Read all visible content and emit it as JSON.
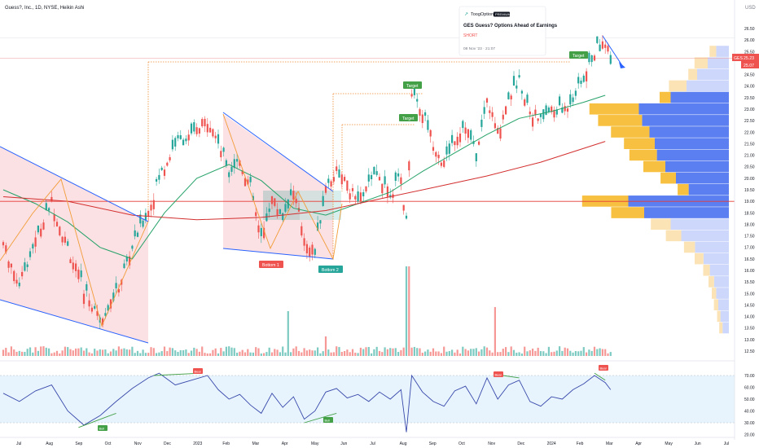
{
  "header": {
    "symbol_line": "Guess?, Inc., 1D, NYSE, Heikin Ashi",
    "currency": "USD"
  },
  "news_card": {
    "brand": "ToogOptions",
    "badge": "PREMIUM",
    "title": "GES Guess? Options Ahead of Earnings",
    "signal": "SHORT",
    "date": "08 Nov '23 · 21:07"
  },
  "price_labels": {
    "ticker": "GES",
    "last": "25.23",
    "prev": "25.07"
  },
  "annotations": {
    "bottom1": "Bottom 1",
    "bottom2": "Bottom 2",
    "targets": [
      "Target",
      "Target",
      "Target"
    ],
    "rsi_markers": [
      "Bull",
      "Bear",
      "Bull",
      "Bear",
      "Bear"
    ]
  },
  "colors": {
    "up": "#26a69a",
    "down": "#ef5350",
    "sma_green": "#26a269",
    "sma_red": "#d32f2f",
    "trendline": "#2962ff",
    "vp_orange": "#f7c040",
    "vp_blue": "#5b7ff0",
    "rsi_line": "#3949ab",
    "target_badge": "#43a047",
    "bottom1_badge": "#ef5350",
    "bottom2_badge": "#26a69a"
  },
  "chart_data": {
    "type": "candlestick",
    "price_axis": {
      "ticks": [
        "26.50",
        "26.00",
        "25.50",
        "25.00",
        "24.50",
        "24.00",
        "23.50",
        "23.00",
        "22.50",
        "22.00",
        "21.50",
        "21.00",
        "20.50",
        "20.00",
        "19.50",
        "19.00",
        "18.50",
        "18.00",
        "17.50",
        "17.00",
        "16.50",
        "16.00",
        "15.50",
        "15.00",
        "14.50",
        "14.00",
        "13.50",
        "13.00",
        "12.50"
      ]
    },
    "time_axis": {
      "ticks": [
        "Jul",
        "Aug",
        "Sep",
        "Oct",
        "Nov",
        "Dec",
        "2023",
        "Feb",
        "Mar",
        "Apr",
        "May",
        "Jun",
        "Jul",
        "Aug",
        "Sep",
        "Oct",
        "Nov",
        "Dec",
        "2024",
        "Feb",
        "Mar",
        "Apr",
        "May",
        "Jun",
        "Jul"
      ]
    },
    "rsi_axis": {
      "ticks": [
        "70.00",
        "60.00",
        "50.00",
        "40.00",
        "30.00",
        "20.00"
      ],
      "band": [
        30,
        70
      ]
    },
    "horizontal_level": 19.0,
    "price_path": [
      [
        0,
        17.2
      ],
      [
        6,
        15.4
      ],
      [
        12,
        17.3
      ],
      [
        18,
        19.0
      ],
      [
        24,
        17.0
      ],
      [
        30,
        15.2
      ],
      [
        36,
        13.9
      ],
      [
        42,
        15.0
      ],
      [
        48,
        17.0
      ],
      [
        54,
        18.6
      ],
      [
        58,
        20.0
      ],
      [
        64,
        21.5
      ],
      [
        70,
        21.8
      ],
      [
        76,
        22.6
      ],
      [
        80,
        21.6
      ],
      [
        84,
        20.3
      ],
      [
        88,
        20.8
      ],
      [
        92,
        19.6
      ],
      [
        96,
        17.3
      ],
      [
        100,
        19.2
      ],
      [
        104,
        18.3
      ],
      [
        108,
        19.5
      ],
      [
        112,
        17.5
      ],
      [
        116,
        16.8
      ],
      [
        120,
        19.6
      ],
      [
        124,
        20.4
      ],
      [
        128,
        19.7
      ],
      [
        132,
        19.0
      ],
      [
        136,
        19.7
      ],
      [
        140,
        20.2
      ],
      [
        144,
        19.4
      ],
      [
        148,
        20.0
      ],
      [
        150,
        18.1
      ],
      [
        152,
        23.8
      ],
      [
        156,
        22.9
      ],
      [
        160,
        21.6
      ],
      [
        164,
        20.6
      ],
      [
        168,
        21.8
      ],
      [
        172,
        22.4
      ],
      [
        176,
        20.9
      ],
      [
        180,
        23.4
      ],
      [
        184,
        22.0
      ],
      [
        188,
        23.6
      ],
      [
        192,
        24.2
      ],
      [
        196,
        23.0
      ],
      [
        200,
        22.5
      ],
      [
        204,
        23.0
      ],
      [
        208,
        22.9
      ],
      [
        212,
        23.5
      ],
      [
        216,
        24.3
      ],
      [
        220,
        25.5
      ],
      [
        224,
        26.0
      ],
      [
        226,
        25.2
      ]
    ],
    "sma_green": [
      [
        0,
        19.5
      ],
      [
        12,
        18.9
      ],
      [
        24,
        18.1
      ],
      [
        36,
        17.0
      ],
      [
        48,
        16.5
      ],
      [
        60,
        18.5
      ],
      [
        72,
        20.0
      ],
      [
        84,
        20.6
      ],
      [
        96,
        19.9
      ],
      [
        108,
        18.7
      ],
      [
        120,
        18.4
      ],
      [
        132,
        18.9
      ],
      [
        144,
        19.4
      ],
      [
        156,
        20.3
      ],
      [
        168,
        21.1
      ],
      [
        180,
        21.9
      ],
      [
        192,
        22.6
      ],
      [
        204,
        22.9
      ],
      [
        216,
        23.3
      ],
      [
        224,
        23.6
      ]
    ],
    "sma_red": [
      [
        0,
        19.2
      ],
      [
        24,
        19.0
      ],
      [
        48,
        18.4
      ],
      [
        72,
        18.2
      ],
      [
        96,
        18.3
      ],
      [
        120,
        18.6
      ],
      [
        140,
        19.1
      ],
      [
        160,
        19.6
      ],
      [
        180,
        20.1
      ],
      [
        200,
        20.7
      ],
      [
        224,
        21.6
      ]
    ],
    "rsi": [
      [
        0,
        55
      ],
      [
        6,
        48
      ],
      [
        12,
        57
      ],
      [
        18,
        62
      ],
      [
        24,
        40
      ],
      [
        30,
        28
      ],
      [
        36,
        36
      ],
      [
        42,
        48
      ],
      [
        48,
        59
      ],
      [
        54,
        68
      ],
      [
        58,
        72
      ],
      [
        64,
        62
      ],
      [
        70,
        66
      ],
      [
        76,
        70
      ],
      [
        80,
        58
      ],
      [
        84,
        50
      ],
      [
        88,
        54
      ],
      [
        92,
        45
      ],
      [
        96,
        38
      ],
      [
        100,
        55
      ],
      [
        104,
        43
      ],
      [
        108,
        52
      ],
      [
        112,
        33
      ],
      [
        116,
        40
      ],
      [
        120,
        56
      ],
      [
        124,
        59
      ],
      [
        128,
        51
      ],
      [
        132,
        54
      ],
      [
        136,
        48
      ],
      [
        140,
        56
      ],
      [
        144,
        50
      ],
      [
        148,
        58
      ],
      [
        150,
        22
      ],
      [
        152,
        70
      ],
      [
        156,
        56
      ],
      [
        160,
        48
      ],
      [
        164,
        44
      ],
      [
        168,
        57
      ],
      [
        172,
        61
      ],
      [
        176,
        46
      ],
      [
        180,
        68
      ],
      [
        184,
        50
      ],
      [
        188,
        62
      ],
      [
        192,
        66
      ],
      [
        196,
        48
      ],
      [
        200,
        44
      ],
      [
        204,
        52
      ],
      [
        208,
        50
      ],
      [
        212,
        58
      ],
      [
        216,
        63
      ],
      [
        220,
        70
      ],
      [
        224,
        64
      ],
      [
        226,
        58
      ]
    ],
    "volume_profile": [
      {
        "price": 25.5,
        "up": 6,
        "down": 12
      },
      {
        "price": 25.0,
        "up": 12,
        "down": 20
      },
      {
        "price": 24.5,
        "up": 8,
        "down": 30
      },
      {
        "price": 24.0,
        "up": 16,
        "down": 40
      },
      {
        "price": 23.5,
        "up": 10,
        "down": 55
      },
      {
        "price": 23.0,
        "up": 45,
        "down": 85
      },
      {
        "price": 22.5,
        "up": 40,
        "down": 82
      },
      {
        "price": 22.0,
        "up": 35,
        "down": 75
      },
      {
        "price": 21.5,
        "up": 28,
        "down": 70
      },
      {
        "price": 21.0,
        "up": 25,
        "down": 68
      },
      {
        "price": 20.5,
        "up": 20,
        "down": 60
      },
      {
        "price": 20.0,
        "up": 14,
        "down": 50
      },
      {
        "price": 19.5,
        "up": 10,
        "down": 38
      },
      {
        "price": 19.0,
        "up": 42,
        "down": 95
      },
      {
        "price": 18.5,
        "up": 30,
        "down": 80
      },
      {
        "price": 18.0,
        "up": 18,
        "down": 55
      },
      {
        "price": 17.5,
        "up": 14,
        "down": 45
      },
      {
        "price": 17.0,
        "up": 10,
        "down": 32
      },
      {
        "price": 16.5,
        "up": 8,
        "down": 24
      },
      {
        "price": 16.0,
        "up": 6,
        "down": 18
      },
      {
        "price": 15.5,
        "up": 5,
        "down": 14
      },
      {
        "price": 15.0,
        "up": 4,
        "down": 12
      },
      {
        "price": 14.5,
        "up": 4,
        "down": 10
      },
      {
        "price": 14.0,
        "up": 3,
        "down": 8
      },
      {
        "price": 13.5,
        "up": 3,
        "down": 6
      }
    ]
  }
}
